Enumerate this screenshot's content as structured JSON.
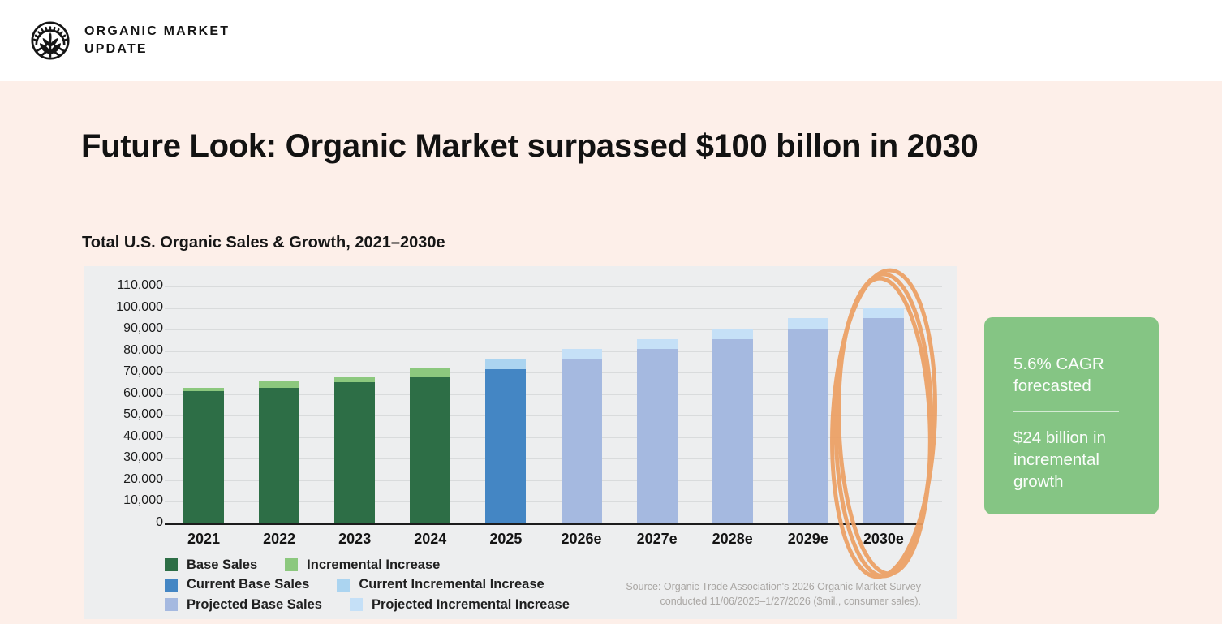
{
  "header": {
    "brand_line1": "ORGANIC MARKET",
    "brand_line2": "UPDATE",
    "logo_icon": "sun-leaf-emblem"
  },
  "page": {
    "title": "Future Look: Organic Market surpassed $100 billon in 2030"
  },
  "chart": {
    "title": "Total U.S. Organic Sales & Growth, 2021–2030e",
    "source_line1": "Source: Organic Trade Association's 2026 Organic Market Survey",
    "source_line2": "conducted 11/06/2025–1/27/2026 ($mil., consumer sales).",
    "legend_rows": [
      [
        {
          "label": "Base Sales",
          "color": "#2d6e46"
        },
        {
          "label": "Incremental Increase",
          "color": "#8cc87e"
        }
      ],
      [
        {
          "label": "Current Base Sales",
          "color": "#4486c4"
        },
        {
          "label": "Current Incremental Increase",
          "color": "#abd4f0"
        }
      ],
      [
        {
          "label": "Projected Base Sales",
          "color": "#a5b9e0"
        },
        {
          "label": "Projected Incremental Increase",
          "color": "#c5e0f7"
        }
      ]
    ]
  },
  "callout": {
    "background": "#85c584",
    "stat1": "5.6% CAGR forecasted",
    "stat2": "$24 billion in incremental growth"
  },
  "annotation": {
    "type": "hand-drawn-ellipse",
    "color": "#ec9f63",
    "target": "2030e"
  },
  "chart_data": {
    "type": "bar",
    "stacked": true,
    "title": "Total U.S. Organic Sales & Growth, 2021–2030e",
    "categories": [
      "2021",
      "2022",
      "2023",
      "2024",
      "2025",
      "2026e",
      "2027e",
      "2028e",
      "2029e",
      "2030e"
    ],
    "series": [
      {
        "name": "Base Sales",
        "color": "#2d6e46",
        "values": [
          61500,
          63000,
          65500,
          68000,
          0,
          0,
          0,
          0,
          0,
          0
        ]
      },
      {
        "name": "Incremental Increase",
        "color": "#8cc87e",
        "values": [
          1500,
          2800,
          2500,
          3800,
          0,
          0,
          0,
          0,
          0,
          0
        ]
      },
      {
        "name": "Current Base Sales",
        "color": "#4486c4",
        "values": [
          0,
          0,
          0,
          0,
          71500,
          0,
          0,
          0,
          0,
          0
        ]
      },
      {
        "name": "Current Incremental Increase",
        "color": "#abd4f0",
        "values": [
          0,
          0,
          0,
          0,
          5000,
          0,
          0,
          0,
          0,
          0
        ]
      },
      {
        "name": "Projected Base Sales",
        "color": "#a5b9e0",
        "values": [
          0,
          0,
          0,
          0,
          0,
          76500,
          81000,
          85500,
          90500,
          95500
        ]
      },
      {
        "name": "Projected Incremental Increase",
        "color": "#c5e0f7",
        "values": [
          0,
          0,
          0,
          0,
          0,
          4500,
          4500,
          4500,
          4800,
          4800
        ]
      }
    ],
    "xlabel": "",
    "ylabel": "",
    "ylim": [
      0,
      110000
    ],
    "yticks": [
      0,
      10000,
      20000,
      30000,
      40000,
      50000,
      60000,
      70000,
      80000,
      90000,
      100000,
      110000
    ],
    "grid": true,
    "legend_position": "bottom-left",
    "units": "$mil."
  }
}
